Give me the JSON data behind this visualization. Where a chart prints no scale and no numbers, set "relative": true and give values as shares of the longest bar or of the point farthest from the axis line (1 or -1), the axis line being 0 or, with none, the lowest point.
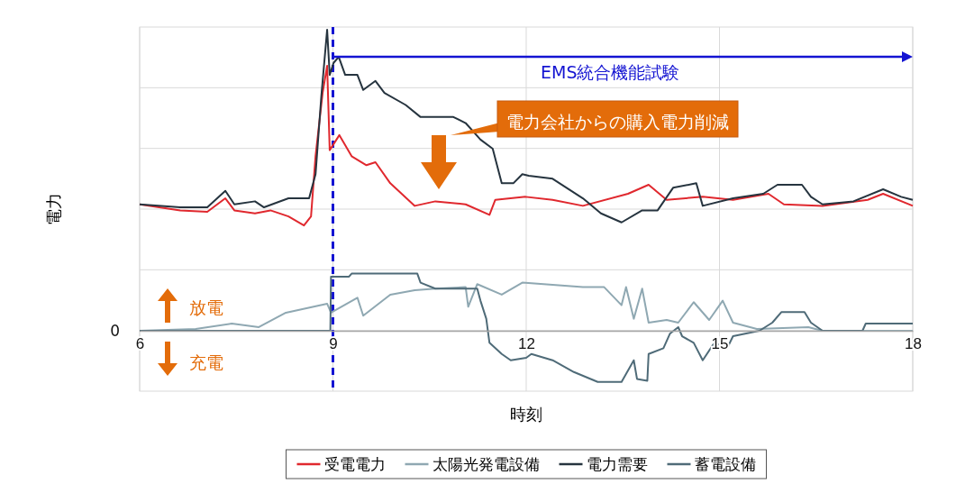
{
  "chart_data": {
    "type": "line",
    "relative": true,
    "xlabel": "時刻",
    "ylabel": "電力",
    "xlim": [
      6,
      18
    ],
    "xticks": [
      6,
      9,
      12,
      15,
      18
    ],
    "grid": true,
    "legend": "bottom",
    "line_style": "solid",
    "marker": "none",
    "ref_lines": [
      {
        "axis": "x",
        "value": 9,
        "color": "#1414d2",
        "line_style": "dashed"
      }
    ],
    "annotations": [
      "EMS統合機能試験",
      "電力会社からの購入電力削減",
      "放電",
      "充電",
      "0"
    ],
    "series": [
      {
        "name": "受電電力",
        "color": "#e0282e",
        "x": [
          6,
          6.63,
          7.05,
          7.33,
          7.47,
          7.79,
          8.03,
          8.31,
          8.55,
          8.66,
          8.73,
          8.84,
          8.91,
          8.95,
          9.1,
          9.29,
          9.52,
          9.66,
          9.89,
          10.27,
          10.59,
          11.06,
          11.43,
          11.52,
          11.99,
          12.41,
          12.88,
          13.58,
          13.9,
          14.18,
          14.74,
          15.21,
          15.76,
          16,
          16.6,
          17.3,
          17.54,
          18
        ],
        "values": [
          0.42,
          0.4,
          0.395,
          0.44,
          0.4,
          0.39,
          0.4,
          0.38,
          0.35,
          0.38,
          0.58,
          0.79,
          0.88,
          0.6,
          0.65,
          0.58,
          0.55,
          0.56,
          0.49,
          0.415,
          0.43,
          0.42,
          0.385,
          0.435,
          0.445,
          0.435,
          0.415,
          0.455,
          0.485,
          0.435,
          0.445,
          0.435,
          0.455,
          0.42,
          0.415,
          0.435,
          0.455,
          0.415
        ]
      },
      {
        "name": "太陽光発電設備",
        "color": "#8fa8b2",
        "x": [
          6,
          6.87,
          7.43,
          7.85,
          8.27,
          8.91,
          8.97,
          9.38,
          9.47,
          9.89,
          10.27,
          10.59,
          11.06,
          11.1,
          11.24,
          11.62,
          11.94,
          12.88,
          13.21,
          13.48,
          13.55,
          13.67,
          13.8,
          13.9,
          14.18,
          14.36,
          14.6,
          14.84,
          15.05,
          15.21,
          15.58,
          16.38,
          16.6,
          18
        ],
        "values": [
          0,
          0.006,
          0.024,
          0.012,
          0.06,
          0.09,
          0.06,
          0.11,
          0.05,
          0.12,
          0.135,
          0.14,
          0.145,
          0.08,
          0.155,
          0.12,
          0.16,
          0.145,
          0.145,
          0.085,
          0.145,
          0.04,
          0.14,
          0.027,
          0.036,
          0.027,
          0.095,
          0.036,
          0.1,
          0.027,
          0.006,
          0.012,
          0,
          0
        ]
      },
      {
        "name": "電力需要",
        "color": "#26343f",
        "x": [
          6,
          6.63,
          7.05,
          7.33,
          7.47,
          7.79,
          7.93,
          8.31,
          8.63,
          8.73,
          8.82,
          8.91,
          8.95,
          9.01,
          9.09,
          9.19,
          9.38,
          9.47,
          9.66,
          9.8,
          10.13,
          10.36,
          10.64,
          10.87,
          11.06,
          11.29,
          11.48,
          11.62,
          11.8,
          11.94,
          12.04,
          12.41,
          12.88,
          13.16,
          13.48,
          13.8,
          14.04,
          14.28,
          14.64,
          14.74,
          15.21,
          15.68,
          15.9,
          16.28,
          16.42,
          16.6,
          17.08,
          17.54,
          17.82,
          18
        ],
        "values": [
          0.42,
          0.41,
          0.41,
          0.465,
          0.42,
          0.43,
          0.41,
          0.44,
          0.44,
          0.52,
          0.78,
          1,
          0.85,
          0.89,
          0.91,
          0.85,
          0.85,
          0.8,
          0.83,
          0.79,
          0.75,
          0.71,
          0.71,
          0.71,
          0.69,
          0.635,
          0.605,
          0.49,
          0.49,
          0.52,
          0.515,
          0.505,
          0.44,
          0.39,
          0.36,
          0.4,
          0.4,
          0.475,
          0.49,
          0.415,
          0.44,
          0.455,
          0.485,
          0.485,
          0.445,
          0.42,
          0.43,
          0.47,
          0.445,
          0.435
        ]
      },
      {
        "name": "蓄電設備",
        "color": "#4f6b78",
        "x": [
          6,
          8.96,
          8.97,
          9.25,
          9.29,
          10.31,
          10.36,
          10.59,
          11.24,
          11.29,
          11.38,
          11.43,
          11.62,
          11.76,
          12,
          12.08,
          12.41,
          12.74,
          13.11,
          13.48,
          13.67,
          13.72,
          13.88,
          13.9,
          14.13,
          14.23,
          14.36,
          14.42,
          14.6,
          14.74,
          14.92,
          15.12,
          15.21,
          15.62,
          15.82,
          15.96,
          16.32,
          16.42,
          16.6,
          17.22,
          17.27,
          18
        ],
        "values": [
          0,
          0,
          0.18,
          0.18,
          0.19,
          0.19,
          0.16,
          0.14,
          0.14,
          0.1,
          0.04,
          -0.04,
          -0.077,
          -0.098,
          -0.09,
          -0.077,
          -0.098,
          -0.137,
          -0.17,
          -0.17,
          -0.098,
          -0.16,
          -0.166,
          -0.077,
          -0.058,
          -0.01,
          0.012,
          -0.018,
          -0.04,
          -0.098,
          -0.04,
          -0.058,
          -0.018,
          0,
          0.027,
          0.062,
          0.062,
          0.027,
          0,
          0,
          0.024,
          0.024
        ]
      }
    ]
  }
}
